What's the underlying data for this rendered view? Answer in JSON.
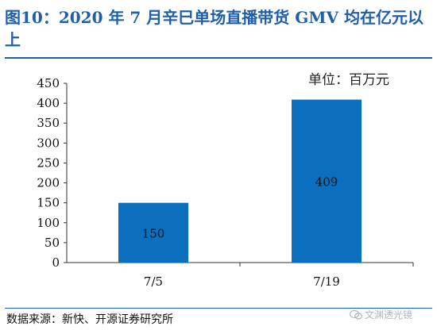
{
  "title": "图10：2020 年 7 月辛巳单场直播带货 GMV 均在亿元以上",
  "unit": "单位：百万元",
  "source": "数据来源：新快、开源证券研究所",
  "watermark": "文渊透光镜",
  "colors": {
    "title": "#1f5fa8",
    "bar": "#0a6fbf",
    "axis": "#333333",
    "bar_label": "#111111"
  },
  "chart_data": {
    "type": "bar",
    "title": "图10：2020 年 7 月辛巳单场直播带货 GMV 均在亿元以上",
    "categories": [
      "7/5",
      "7/19"
    ],
    "values": [
      150,
      409
    ],
    "data_labels": [
      "150",
      "409"
    ],
    "xlabel": "",
    "ylabel": "",
    "unit": "单位：百万元",
    "ylim": [
      0,
      450
    ],
    "yticks": [
      0,
      50,
      100,
      150,
      200,
      250,
      300,
      350,
      400,
      450
    ],
    "grid": false,
    "legend": "none"
  }
}
